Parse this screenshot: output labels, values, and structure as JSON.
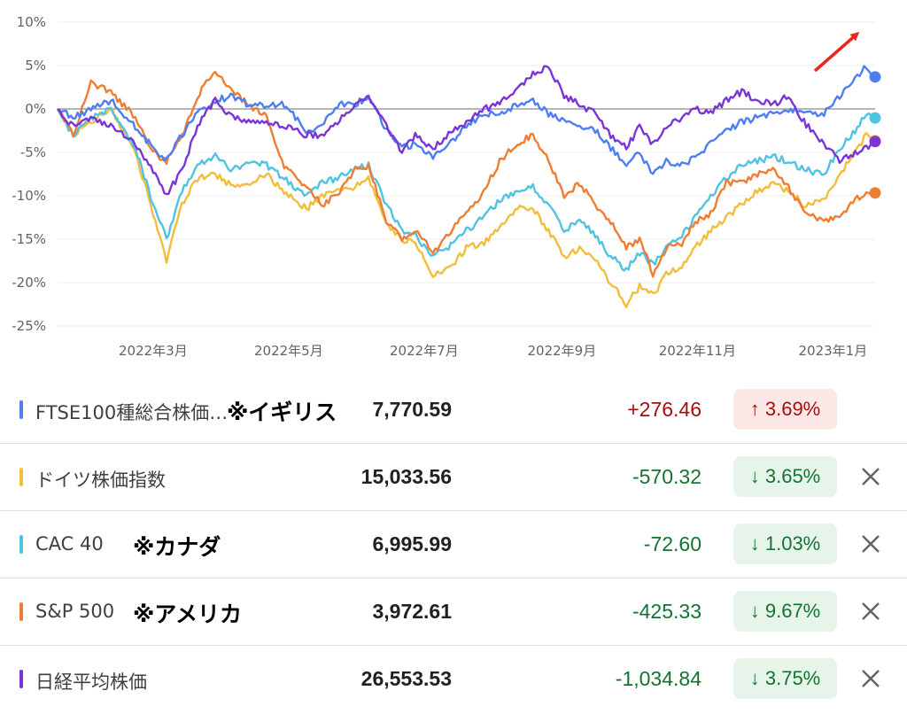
{
  "chart_data": {
    "type": "line",
    "x_ticks": [
      "2022年3月",
      "2022年5月",
      "2022年7月",
      "2022年9月",
      "2022年11月",
      "2023年1月"
    ],
    "y_ticks": [
      "10%",
      "5%",
      "0%",
      "-5%",
      "-10%",
      "-15%",
      "-20%",
      "-25%"
    ],
    "ylim": [
      -25,
      10
    ],
    "x_start": "2022-01-17",
    "x_end": "2023-01-20",
    "grid": true,
    "series": [
      {
        "name": "FTSE100種総合株価…",
        "color": "#4e7ff0",
        "z": 3,
        "points": [
          [
            "2022-01-17",
            0
          ],
          [
            "2022-01-24",
            -1
          ],
          [
            "2022-02-01",
            0
          ],
          [
            "2022-02-10",
            1
          ],
          [
            "2022-02-21",
            -2
          ],
          [
            "2022-03-01",
            -4.5
          ],
          [
            "2022-03-07",
            -6
          ],
          [
            "2022-03-14",
            -3
          ],
          [
            "2022-03-21",
            -0.5
          ],
          [
            "2022-03-29",
            1
          ],
          [
            "2022-04-06",
            1.5
          ],
          [
            "2022-04-13",
            0.5
          ],
          [
            "2022-04-21",
            0.5
          ],
          [
            "2022-04-29",
            0.5
          ],
          [
            "2022-05-09",
            -2.5
          ],
          [
            "2022-05-16",
            -2
          ],
          [
            "2022-05-23",
            0.5
          ],
          [
            "2022-05-31",
            0.5
          ],
          [
            "2022-06-06",
            1.5
          ],
          [
            "2022-06-14",
            -2.5
          ],
          [
            "2022-06-21",
            -4.5
          ],
          [
            "2022-06-27",
            -4
          ],
          [
            "2022-07-05",
            -5.5
          ],
          [
            "2022-07-12",
            -4
          ],
          [
            "2022-07-20",
            -2
          ],
          [
            "2022-07-28",
            -0.5
          ],
          [
            "2022-08-04",
            -0.5
          ],
          [
            "2022-08-12",
            0.5
          ],
          [
            "2022-08-19",
            1
          ],
          [
            "2022-08-26",
            -0.5
          ],
          [
            "2022-09-02",
            -1.5
          ],
          [
            "2022-09-09",
            -2
          ],
          [
            "2022-09-16",
            -2.5
          ],
          [
            "2022-09-23",
            -4.5
          ],
          [
            "2022-09-30",
            -6.5
          ],
          [
            "2022-10-06",
            -5
          ],
          [
            "2022-10-12",
            -7.5
          ],
          [
            "2022-10-18",
            -6
          ],
          [
            "2022-10-25",
            -6.5
          ],
          [
            "2022-10-31",
            -5.5
          ],
          [
            "2022-11-07",
            -4
          ],
          [
            "2022-11-14",
            -2.5
          ],
          [
            "2022-11-21",
            -1.5
          ],
          [
            "2022-11-28",
            -1
          ],
          [
            "2022-12-05",
            -0.5
          ],
          [
            "2022-12-12",
            0
          ],
          [
            "2022-12-19",
            -0.5
          ],
          [
            "2022-12-28",
            -0.5
          ],
          [
            "2023-01-04",
            1.5
          ],
          [
            "2023-01-11",
            3.5
          ],
          [
            "2023-01-16",
            5
          ],
          [
            "2023-01-20",
            3.69
          ]
        ]
      },
      {
        "name": "ドイツ株価指数",
        "color": "#f2bd3b",
        "z": 0,
        "points": [
          [
            "2022-01-17",
            0
          ],
          [
            "2022-01-24",
            -3
          ],
          [
            "2022-02-01",
            -1.5
          ],
          [
            "2022-02-10",
            0
          ],
          [
            "2022-02-21",
            -5
          ],
          [
            "2022-03-01",
            -12
          ],
          [
            "2022-03-07",
            -17.5
          ],
          [
            "2022-03-14",
            -11
          ],
          [
            "2022-03-21",
            -8
          ],
          [
            "2022-03-29",
            -7.5
          ],
          [
            "2022-04-06",
            -9
          ],
          [
            "2022-04-13",
            -8.5
          ],
          [
            "2022-04-21",
            -7.5
          ],
          [
            "2022-04-29",
            -9.5
          ],
          [
            "2022-05-09",
            -11.5
          ],
          [
            "2022-05-16",
            -10
          ],
          [
            "2022-05-23",
            -9.5
          ],
          [
            "2022-05-31",
            -9
          ],
          [
            "2022-06-06",
            -8
          ],
          [
            "2022-06-14",
            -13
          ],
          [
            "2022-06-21",
            -15
          ],
          [
            "2022-06-27",
            -15.5
          ],
          [
            "2022-07-05",
            -19
          ],
          [
            "2022-07-12",
            -18.5
          ],
          [
            "2022-07-20",
            -16
          ],
          [
            "2022-07-28",
            -15.5
          ],
          [
            "2022-08-04",
            -13.5
          ],
          [
            "2022-08-12",
            -11.5
          ],
          [
            "2022-08-19",
            -11.5
          ],
          [
            "2022-08-26",
            -14
          ],
          [
            "2022-09-02",
            -17
          ],
          [
            "2022-09-09",
            -16
          ],
          [
            "2022-09-16",
            -17.5
          ],
          [
            "2022-09-23",
            -20
          ],
          [
            "2022-09-30",
            -22.5
          ],
          [
            "2022-10-06",
            -20.5
          ],
          [
            "2022-10-12",
            -21.5
          ],
          [
            "2022-10-18",
            -19
          ],
          [
            "2022-10-25",
            -18
          ],
          [
            "2022-10-31",
            -16
          ],
          [
            "2022-11-07",
            -14
          ],
          [
            "2022-11-14",
            -12.5
          ],
          [
            "2022-11-21",
            -11
          ],
          [
            "2022-11-28",
            -9.5
          ],
          [
            "2022-12-05",
            -8.5
          ],
          [
            "2022-12-12",
            -9.5
          ],
          [
            "2022-12-19",
            -11
          ],
          [
            "2022-12-28",
            -10.5
          ],
          [
            "2023-01-04",
            -7.5
          ],
          [
            "2023-01-11",
            -5
          ],
          [
            "2023-01-16",
            -3
          ],
          [
            "2023-01-20",
            -3.65
          ]
        ]
      },
      {
        "name": "CAC 40",
        "color": "#4fc3e0",
        "z": 1,
        "points": [
          [
            "2022-01-17",
            0
          ],
          [
            "2022-01-24",
            -3
          ],
          [
            "2022-02-01",
            -1
          ],
          [
            "2022-02-10",
            0
          ],
          [
            "2022-02-21",
            -4.5
          ],
          [
            "2022-03-01",
            -11
          ],
          [
            "2022-03-07",
            -15
          ],
          [
            "2022-03-14",
            -9.5
          ],
          [
            "2022-03-21",
            -6.5
          ],
          [
            "2022-03-29",
            -5.5
          ],
          [
            "2022-04-06",
            -7
          ],
          [
            "2022-04-13",
            -6
          ],
          [
            "2022-04-21",
            -6.5
          ],
          [
            "2022-04-29",
            -8
          ],
          [
            "2022-05-09",
            -10
          ],
          [
            "2022-05-16",
            -8.5
          ],
          [
            "2022-05-23",
            -8
          ],
          [
            "2022-05-31",
            -7
          ],
          [
            "2022-06-06",
            -6.5
          ],
          [
            "2022-06-14",
            -11
          ],
          [
            "2022-06-21",
            -14
          ],
          [
            "2022-06-27",
            -14.5
          ],
          [
            "2022-07-05",
            -17
          ],
          [
            "2022-07-12",
            -16
          ],
          [
            "2022-07-20",
            -14
          ],
          [
            "2022-07-28",
            -12.5
          ],
          [
            "2022-08-04",
            -10.5
          ],
          [
            "2022-08-12",
            -9.5
          ],
          [
            "2022-08-19",
            -9
          ],
          [
            "2022-08-26",
            -11
          ],
          [
            "2022-09-02",
            -14
          ],
          [
            "2022-09-09",
            -13
          ],
          [
            "2022-09-16",
            -14.5
          ],
          [
            "2022-09-23",
            -17
          ],
          [
            "2022-09-30",
            -18.5
          ],
          [
            "2022-10-06",
            -16.5
          ],
          [
            "2022-10-12",
            -18
          ],
          [
            "2022-10-18",
            -16
          ],
          [
            "2022-10-25",
            -14.5
          ],
          [
            "2022-10-31",
            -12.5
          ],
          [
            "2022-11-07",
            -10
          ],
          [
            "2022-11-14",
            -8
          ],
          [
            "2022-11-21",
            -6.5
          ],
          [
            "2022-11-28",
            -6
          ],
          [
            "2022-12-05",
            -5.5
          ],
          [
            "2022-12-12",
            -6
          ],
          [
            "2022-12-19",
            -7
          ],
          [
            "2022-12-28",
            -7.5
          ],
          [
            "2023-01-04",
            -4.5
          ],
          [
            "2023-01-11",
            -2.5
          ],
          [
            "2023-01-16",
            -0.5
          ],
          [
            "2023-01-20",
            -1.03
          ]
        ]
      },
      {
        "name": "S&P 500",
        "color": "#ef7d32",
        "z": 2,
        "points": [
          [
            "2022-01-17",
            0
          ],
          [
            "2022-01-24",
            -3
          ],
          [
            "2022-02-01",
            3
          ],
          [
            "2022-02-10",
            2
          ],
          [
            "2022-02-21",
            -1
          ],
          [
            "2022-03-01",
            -5
          ],
          [
            "2022-03-07",
            -6
          ],
          [
            "2022-03-14",
            -3
          ],
          [
            "2022-03-21",
            1.5
          ],
          [
            "2022-03-29",
            4.5
          ],
          [
            "2022-04-06",
            2
          ],
          [
            "2022-04-13",
            0.5
          ],
          [
            "2022-04-21",
            -1
          ],
          [
            "2022-04-29",
            -6.5
          ],
          [
            "2022-05-09",
            -9
          ],
          [
            "2022-05-16",
            -11
          ],
          [
            "2022-05-23",
            -10
          ],
          [
            "2022-05-31",
            -7
          ],
          [
            "2022-06-06",
            -6.5
          ],
          [
            "2022-06-14",
            -13
          ],
          [
            "2022-06-21",
            -15
          ],
          [
            "2022-06-27",
            -14
          ],
          [
            "2022-07-05",
            -16.5
          ],
          [
            "2022-07-12",
            -14.5
          ],
          [
            "2022-07-20",
            -12
          ],
          [
            "2022-07-28",
            -9.5
          ],
          [
            "2022-08-04",
            -6
          ],
          [
            "2022-08-12",
            -4
          ],
          [
            "2022-08-19",
            -3
          ],
          [
            "2022-08-26",
            -6
          ],
          [
            "2022-09-02",
            -10
          ],
          [
            "2022-09-09",
            -8.5
          ],
          [
            "2022-09-16",
            -11
          ],
          [
            "2022-09-23",
            -13
          ],
          [
            "2022-09-30",
            -16
          ],
          [
            "2022-10-06",
            -15
          ],
          [
            "2022-10-12",
            -19
          ],
          [
            "2022-10-18",
            -16
          ],
          [
            "2022-10-25",
            -15.5
          ],
          [
            "2022-10-31",
            -13
          ],
          [
            "2022-11-07",
            -12
          ],
          [
            "2022-11-14",
            -8.5
          ],
          [
            "2022-11-21",
            -8.5
          ],
          [
            "2022-11-28",
            -7.5
          ],
          [
            "2022-12-05",
            -7
          ],
          [
            "2022-12-12",
            -9
          ],
          [
            "2022-12-19",
            -12
          ],
          [
            "2022-12-28",
            -13
          ],
          [
            "2023-01-04",
            -12.5
          ],
          [
            "2023-01-11",
            -10.5
          ],
          [
            "2023-01-16",
            -9.5
          ],
          [
            "2023-01-20",
            -9.67
          ]
        ]
      },
      {
        "name": "日経平均株価",
        "color": "#7b35d6",
        "z": 4,
        "points": [
          [
            "2022-01-17",
            0
          ],
          [
            "2022-01-24",
            -2
          ],
          [
            "2022-02-01",
            -1
          ],
          [
            "2022-02-10",
            -2
          ],
          [
            "2022-02-21",
            -4
          ],
          [
            "2022-03-01",
            -7
          ],
          [
            "2022-03-07",
            -10
          ],
          [
            "2022-03-14",
            -7
          ],
          [
            "2022-03-21",
            -2
          ],
          [
            "2022-03-29",
            1
          ],
          [
            "2022-04-06",
            -1
          ],
          [
            "2022-04-13",
            -1.5
          ],
          [
            "2022-04-21",
            -1.5
          ],
          [
            "2022-04-29",
            -2
          ],
          [
            "2022-05-09",
            -3
          ],
          [
            "2022-05-16",
            -3
          ],
          [
            "2022-05-23",
            -1.5
          ],
          [
            "2022-05-31",
            0.5
          ],
          [
            "2022-06-06",
            1.5
          ],
          [
            "2022-06-14",
            -2
          ],
          [
            "2022-06-21",
            -5
          ],
          [
            "2022-06-27",
            -3
          ],
          [
            "2022-07-05",
            -4.5
          ],
          [
            "2022-07-12",
            -3
          ],
          [
            "2022-07-20",
            -1.5
          ],
          [
            "2022-07-28",
            0
          ],
          [
            "2022-08-04",
            0.5
          ],
          [
            "2022-08-12",
            2.5
          ],
          [
            "2022-08-19",
            4
          ],
          [
            "2022-08-26",
            5
          ],
          [
            "2022-09-02",
            1.5
          ],
          [
            "2022-09-09",
            0.5
          ],
          [
            "2022-09-16",
            -0.5
          ],
          [
            "2022-09-23",
            -3
          ],
          [
            "2022-09-30",
            -4.5
          ],
          [
            "2022-10-06",
            -2
          ],
          [
            "2022-10-12",
            -4
          ],
          [
            "2022-10-18",
            -2
          ],
          [
            "2022-10-25",
            -1
          ],
          [
            "2022-10-31",
            0
          ],
          [
            "2022-11-07",
            -0.5
          ],
          [
            "2022-11-14",
            1
          ],
          [
            "2022-11-21",
            2
          ],
          [
            "2022-11-28",
            1
          ],
          [
            "2022-12-05",
            0.5
          ],
          [
            "2022-12-12",
            1.5
          ],
          [
            "2022-12-19",
            -1.5
          ],
          [
            "2022-12-28",
            -4
          ],
          [
            "2023-01-04",
            -6
          ],
          [
            "2023-01-11",
            -5
          ],
          [
            "2023-01-16",
            -4.5
          ],
          [
            "2023-01-20",
            -3.75
          ]
        ]
      }
    ]
  },
  "rows": [
    {
      "name": "FTSE100種総合株価…",
      "note": "※イギリス",
      "price": "7,770.59",
      "change": "+276.46",
      "badge": "↑ 3.69%",
      "dir": "up",
      "color": "#4e7ff0",
      "close": false
    },
    {
      "name": "ドイツ株価指数",
      "note": "",
      "price": "15,033.56",
      "change": "-570.32",
      "badge": "↓ 3.65%",
      "dir": "down",
      "color": "#f2bd3b",
      "close": true
    },
    {
      "name": "CAC 40",
      "note": "※カナダ",
      "price": "6,995.99",
      "change": "-72.60",
      "badge": "↓ 1.03%",
      "dir": "down",
      "color": "#4fc3e0",
      "close": true
    },
    {
      "name": "S&P 500",
      "note": "※アメリカ",
      "price": "3,972.61",
      "change": "-425.33",
      "badge": "↓ 9.67%",
      "dir": "down",
      "color": "#ef7d32",
      "close": true
    },
    {
      "name": "日経平均株価",
      "note": "",
      "price": "26,553.53",
      "change": "-1,034.84",
      "badge": "↓ 3.75%",
      "dir": "down",
      "color": "#7b35d6",
      "close": true
    }
  ]
}
